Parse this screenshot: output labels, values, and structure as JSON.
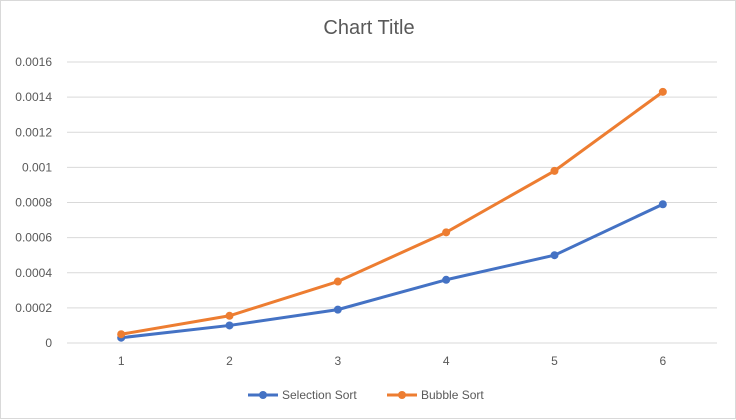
{
  "chart_data": {
    "type": "line",
    "title": "Chart Title",
    "xlabel": "",
    "ylabel": "",
    "categories": [
      "1",
      "2",
      "3",
      "4",
      "5",
      "6"
    ],
    "ylim": [
      0,
      0.0016
    ],
    "yticks": [
      "0",
      "0.0002",
      "0.0004",
      "0.0006",
      "0.0008",
      "0.001",
      "0.0012",
      "0.0014",
      "0.0016"
    ],
    "grid": true,
    "legend_position": "bottom",
    "series": [
      {
        "name": "Selection Sort",
        "color": "#4472c4",
        "values": [
          3e-05,
          0.0001,
          0.00019,
          0.00036,
          0.0005,
          0.00079
        ]
      },
      {
        "name": "Bubble Sort",
        "color": "#ed7d31",
        "values": [
          5e-05,
          0.000155,
          0.00035,
          0.00063,
          0.00098,
          0.00143
        ]
      }
    ]
  }
}
